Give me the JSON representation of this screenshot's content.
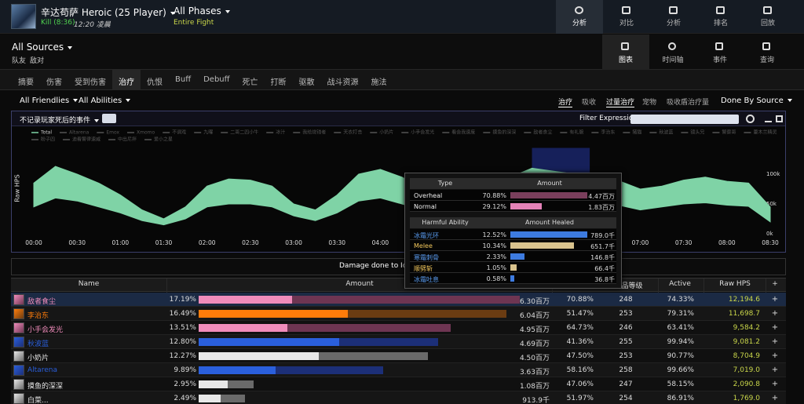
{
  "header": {
    "boss": "辛达苟萨 Heroic (25 Player)",
    "result": "Kill (8:36)",
    "time": "12:20 凌晨",
    "phase": "All Phases",
    "phase_sub": "Entire Fight",
    "nav": [
      "分析",
      "对比",
      "分析",
      "排名",
      "回放"
    ],
    "nav_active": 0
  },
  "source": {
    "title": "All Sources",
    "sub": [
      "队友",
      "敌对"
    ],
    "views": [
      "图表",
      "时间轴",
      "事件",
      "查询"
    ],
    "views_active": 0
  },
  "tabs": [
    "摘要",
    "伤害",
    "受到伤害",
    "治疗",
    "仇恨",
    "Buff",
    "Debuff",
    "死亡",
    "打断",
    "驱散",
    "战斗资源",
    "施法"
  ],
  "tabs_active": 3,
  "filters": {
    "left": [
      "All Friendlies",
      "All Abilities"
    ],
    "right": [
      "治疗",
      "吸收",
      "过量治疗",
      "宠物",
      "吸收盾治疗量"
    ],
    "right_active": [
      0,
      2
    ],
    "done_by": "Done By Source"
  },
  "chart_panel": {
    "death_option": "不记录玩家死后的事件",
    "filter_label": "Filter Expression:",
    "legend": [
      "Total",
      "Altarena",
      "Emox",
      "Xmomo",
      "不调戏",
      "九曜",
      "二哥二四小牛",
      "冰汁",
      "我给烧钱者",
      "天衣打击",
      "小奶片",
      "小手会发光",
      "看会我速度",
      "摸鱼的深深",
      "敌者食尘",
      "有礼貌",
      "李治东",
      "猪猫",
      "秋波蓝",
      "镜头兄",
      "警察哥",
      "藿木兰精灵",
      "盼子四",
      "迪看警律速威",
      "中出尼拌",
      "爱小之星"
    ],
    "chart_data": {
      "type": "area",
      "y_label": "Raw HPS",
      "x": [
        0,
        15,
        30,
        45,
        60,
        75,
        90,
        105,
        120,
        135,
        150,
        165,
        180,
        195,
        210,
        225,
        240,
        255,
        270,
        285,
        300,
        315,
        330,
        345,
        360,
        375,
        390,
        405,
        420,
        435,
        450,
        465,
        480,
        495,
        510
      ],
      "series": [
        {
          "name": "Total",
          "color": "#7fd3a6",
          "values": [
            85000,
            113000,
            100000,
            85000,
            65000,
            40000,
            25000,
            45000,
            80000,
            92000,
            90000,
            80000,
            50000,
            40000,
            65000,
            100000,
            108000,
            95000,
            75000,
            70000,
            75000,
            80000,
            95000,
            110000,
            105000,
            100000,
            95000,
            89000,
            75000,
            80000,
            90000,
            95000,
            88000,
            85000,
            45000
          ],
          "range_low": [
            45000,
            60000,
            55000,
            45000,
            35000,
            22000,
            15000,
            25000,
            45000,
            50000,
            50000,
            45000,
            30000,
            22000,
            35000,
            55000,
            60000,
            50000,
            40000,
            38000,
            40000,
            45000,
            52000,
            60000,
            58000,
            55000,
            52000,
            48000,
            40000,
            45000,
            50000,
            52000,
            48000,
            46000,
            20000
          ]
        }
      ],
      "xlim": [
        0,
        510
      ],
      "xticks": [
        {
          "value": 0,
          "label": "00:00"
        },
        {
          "value": 30,
          "label": "00:30"
        },
        {
          "value": 60,
          "label": "01:00"
        },
        {
          "value": 90,
          "label": "01:30"
        },
        {
          "value": 120,
          "label": "02:00"
        },
        {
          "value": 150,
          "label": "02:30"
        },
        {
          "value": 180,
          "label": "03:00"
        },
        {
          "value": 210,
          "label": "03:30"
        },
        {
          "value": 240,
          "label": "04:00"
        },
        {
          "value": 270,
          "label": "04:30"
        },
        {
          "value": 300,
          "label": "05:00"
        },
        {
          "value": 330,
          "label": "05:30"
        },
        {
          "value": 360,
          "label": "06:00"
        },
        {
          "value": 390,
          "label": "06:30"
        },
        {
          "value": 420,
          "label": "07:00"
        },
        {
          "value": 450,
          "label": "07:30"
        },
        {
          "value": 480,
          "label": "08:00"
        },
        {
          "value": 510,
          "label": "08:30"
        }
      ],
      "ylim": [
        0,
        148000
      ],
      "yticks": [
        {
          "value": 0,
          "label": "0k"
        },
        {
          "value": 50000,
          "label": "50k"
        },
        {
          "value": 100000,
          "label": "100k"
        }
      ],
      "selection": [
        345,
        385
      ]
    }
  },
  "damage_bar": "Damage done to Ice T",
  "tooltip": {
    "type_headers": [
      "Type",
      "Amount"
    ],
    "types": [
      {
        "label": "Overheal",
        "percent": 70.88,
        "percent_label": "70.88%",
        "amount": "4.47百万",
        "color": "#7a3f5c"
      },
      {
        "label": "Normal",
        "percent": 29.12,
        "percent_label": "29.12%",
        "amount": "1.83百万",
        "color": "#e582b8"
      }
    ],
    "ability_headers": [
      "Harmful Ability",
      "Amount Healed"
    ],
    "abilities": [
      {
        "label": "冰霜光环",
        "percent": 12.52,
        "percent_label": "12.52%",
        "amount": "789.0千",
        "color": "#3d7be0",
        "text_color": "#5a9cf0"
      },
      {
        "label": "Melee",
        "percent": 10.34,
        "percent_label": "10.34%",
        "amount": "651.7千",
        "color": "#d9c38e",
        "text_color": "#f2c75c"
      },
      {
        "label": "寒霜刺骨",
        "percent": 2.33,
        "percent_label": "2.33%",
        "amount": "146.8千",
        "color": "#3d7be0",
        "text_color": "#5a9cf0"
      },
      {
        "label": "顺劈斩",
        "percent": 1.05,
        "percent_label": "1.05%",
        "amount": "66.4千",
        "color": "#d9c38e",
        "text_color": "#f2c75c"
      },
      {
        "label": "冰霜吐息",
        "percent": 0.58,
        "percent_label": "0.58%",
        "amount": "36.8千",
        "color": "#3d7be0",
        "text_color": "#5a9cf0"
      }
    ]
  },
  "table": {
    "columns": [
      "Name",
      "Amount",
      "品等级",
      "Active",
      "Raw HPS",
      "+"
    ],
    "row_action": "+",
    "selected_row": 0,
    "rows": [
      {
        "name": "敌者食尘",
        "color": "#f08cbb",
        "dark": "#6e3552",
        "percent": 17.19,
        "percent_label": "17.19%",
        "amount": "6.30百万",
        "overheal": 70.88,
        "overheal_label": "70.88%",
        "ilvl": "248",
        "active": "74.33%",
        "hps": "12,194.6"
      },
      {
        "name": "李治东",
        "color": "#ff7c0a",
        "dark": "#6b3c12",
        "percent": 16.49,
        "percent_label": "16.49%",
        "amount": "6.04百万",
        "overheal": 51.47,
        "overheal_label": "51.47%",
        "ilvl": "253",
        "active": "79.31%",
        "hps": "11,698.7"
      },
      {
        "name": "小手会发光",
        "color": "#f08cbb",
        "dark": "#6e3552",
        "percent": 13.51,
        "percent_label": "13.51%",
        "amount": "4.95百万",
        "overheal": 64.73,
        "overheal_label": "64.73%",
        "ilvl": "246",
        "active": "63.41%",
        "hps": "9,584.2"
      },
      {
        "name": "秋波蓝",
        "color": "#2a5fdc",
        "dark": "#1c2f78",
        "percent": 12.8,
        "percent_label": "12.80%",
        "amount": "4.69百万",
        "overheal": 41.36,
        "overheal_label": "41.36%",
        "ilvl": "255",
        "active": "99.94%",
        "hps": "9,081.2"
      },
      {
        "name": "小奶片",
        "color": "#e8e8e8",
        "dark": "#6a6a6a",
        "percent": 12.27,
        "percent_label": "12.27%",
        "amount": "4.50百万",
        "overheal": 47.5,
        "overheal_label": "47.50%",
        "ilvl": "253",
        "active": "90.77%",
        "hps": "8,704.9"
      },
      {
        "name": "Altarena",
        "color": "#2a5fdc",
        "dark": "#1c2f78",
        "percent": 9.89,
        "percent_label": "9.89%",
        "amount": "3.63百万",
        "overheal": 58.16,
        "overheal_label": "58.16%",
        "ilvl": "258",
        "active": "99.66%",
        "hps": "7,019.0"
      },
      {
        "name": "摸鱼的深深",
        "color": "#e8e8e8",
        "dark": "#6a6a6a",
        "percent": 2.95,
        "percent_label": "2.95%",
        "amount": "1.08百万",
        "overheal": 47.06,
        "overheal_label": "47.06%",
        "ilvl": "247",
        "active": "58.15%",
        "hps": "2,090.8"
      },
      {
        "name": "白菜...",
        "color": "#e8e8e8",
        "dark": "#6a6a6a",
        "percent": 2.49,
        "percent_label": "2.49%",
        "amount": "913.9千",
        "overheal": 51.97,
        "overheal_label": "51.97%",
        "ilvl": "254",
        "active": "86.91%",
        "hps": "1,769.0"
      }
    ]
  }
}
